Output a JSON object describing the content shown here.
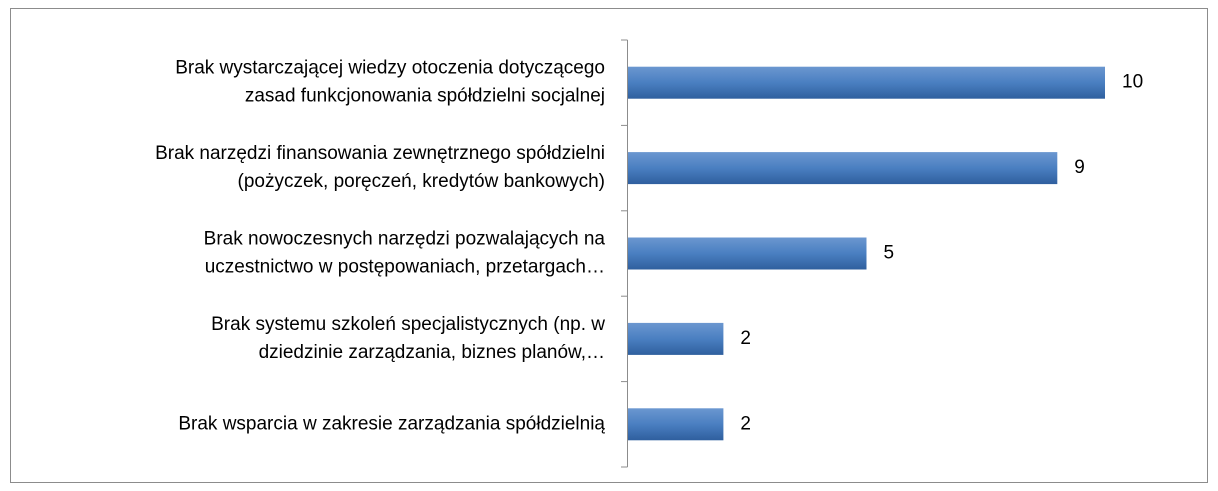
{
  "chart_data": {
    "type": "bar",
    "orientation": "horizontal",
    "color": "#4f81bd",
    "categories": [
      [
        "Brak wystarczającej wiedzy otoczenia dotyczącego",
        "zasad funkcjonowania spółdzielni socjalnej"
      ],
      [
        "Brak narzędzi finansowania zewnętrznego spółdzielni",
        "(pożyczek, poręczeń, kredytów bankowych)"
      ],
      [
        "Brak nowoczesnych narzędzi pozwalających na",
        "uczestnictwo w postępowaniach, przetargach…"
      ],
      [
        "Brak systemu szkoleń specjalistycznych (np. w",
        "dziedzinie zarządzania, biznes planów,…"
      ],
      [
        "Brak wsparcia w zakresie zarządzania spółdzielnią"
      ]
    ],
    "values": [
      10,
      9,
      5,
      2,
      2
    ]
  }
}
